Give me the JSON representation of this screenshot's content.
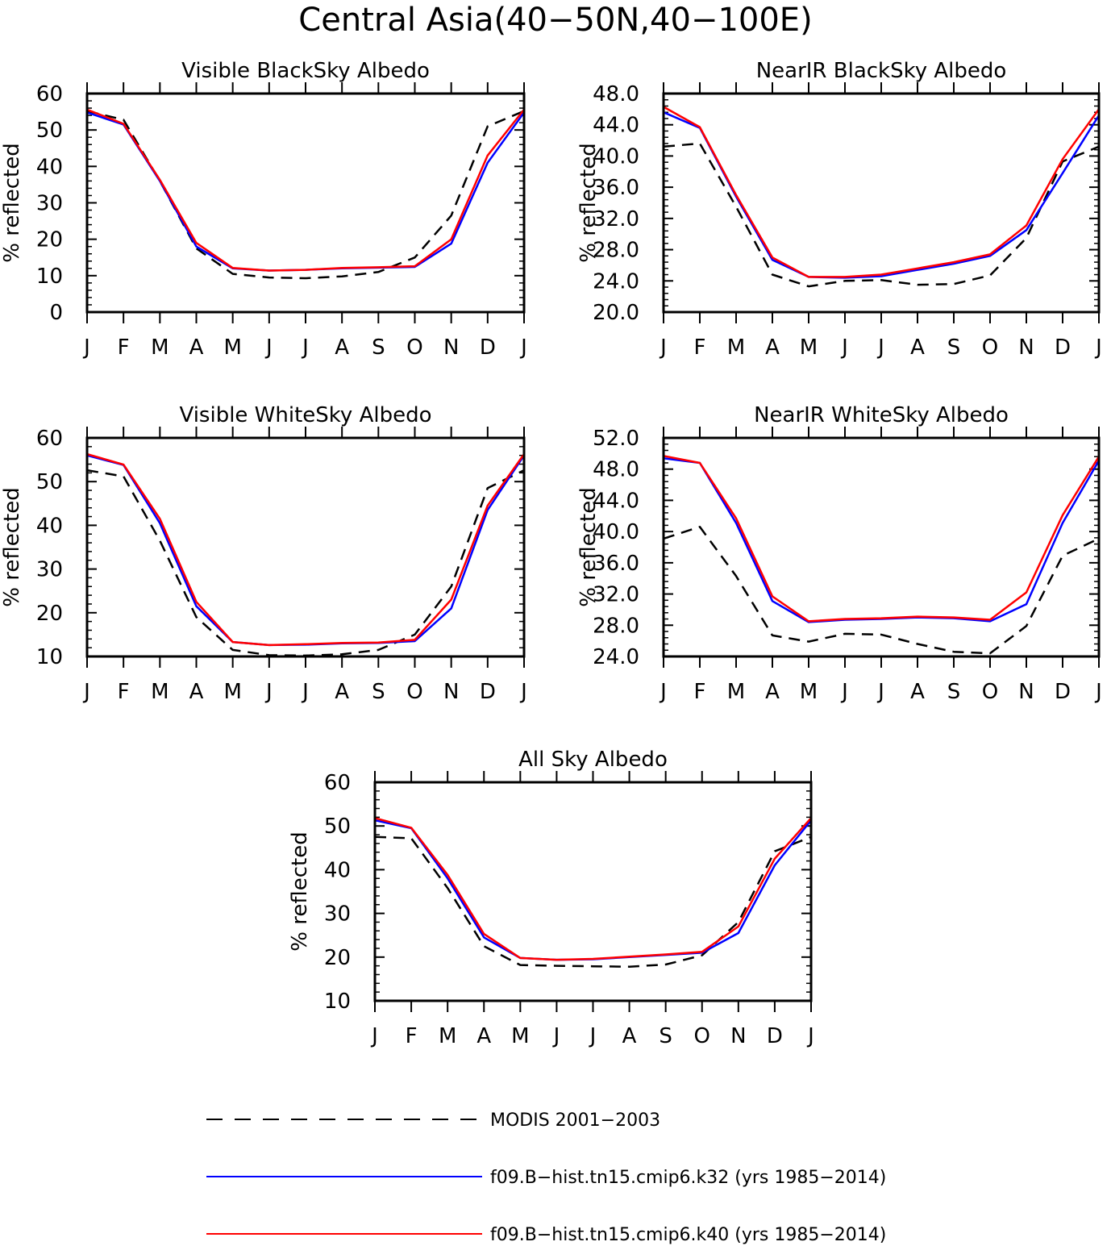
{
  "title": "Central Asia(40−50N,40−100E)",
  "months": [
    "J",
    "F",
    "M",
    "A",
    "M",
    "J",
    "J",
    "A",
    "S",
    "O",
    "N",
    "D",
    "J"
  ],
  "colors": {
    "modis": "#000000",
    "k32": "#0000ff",
    "k40": "#ff0000"
  },
  "legend": [
    {
      "key": "modis",
      "label": "MODIS 2001−2003",
      "style": "dashed"
    },
    {
      "key": "k32",
      "label": "f09.B−hist.tn15.cmip6.k32 (yrs 1985−2014)",
      "style": "solid"
    },
    {
      "key": "k40",
      "label": "f09.B−hist.tn15.cmip6.k40 (yrs 1985−2014)",
      "style": "solid"
    }
  ],
  "chart_data": [
    {
      "type": "line",
      "title": "Visible BlackSky Albedo",
      "ylabel": "% reflected",
      "ylim": [
        0,
        60
      ],
      "yticks": [
        "0",
        "10",
        "20",
        "30",
        "40",
        "50",
        "60"
      ],
      "categories": [
        "J",
        "F",
        "M",
        "A",
        "M",
        "J",
        "J",
        "A",
        "S",
        "O",
        "N",
        "D",
        "J"
      ],
      "series": [
        {
          "name": "MODIS 2001−2003",
          "key": "modis",
          "values": [
            55.2,
            52.8,
            36.0,
            17.5,
            10.5,
            9.5,
            9.3,
            9.8,
            11.0,
            15.0,
            26.5,
            51.0,
            55.2
          ]
        },
        {
          "name": "f09.B−hist.tn15.cmip6.k32 (yrs 1985−2014)",
          "key": "k32",
          "values": [
            54.8,
            51.5,
            36.0,
            18.0,
            12.0,
            11.4,
            11.6,
            12.0,
            12.2,
            12.4,
            18.8,
            41.0,
            54.8
          ]
        },
        {
          "name": "f09.B−hist.tn15.cmip6.k40 (yrs 1985−2014)",
          "key": "k40",
          "values": [
            55.6,
            51.7,
            36.3,
            19.0,
            12.1,
            11.4,
            11.6,
            12.1,
            12.3,
            12.6,
            20.0,
            43.0,
            55.6
          ]
        }
      ]
    },
    {
      "type": "line",
      "title": "NearIR BlackSky Albedo",
      "ylabel": "% reflected",
      "ylim": [
        20,
        48
      ],
      "yticks": [
        "20.0",
        "24.0",
        "28.0",
        "32.0",
        "36.0",
        "40.0",
        "44.0",
        "48.0"
      ],
      "categories": [
        "J",
        "F",
        "M",
        "A",
        "M",
        "J",
        "J",
        "A",
        "S",
        "O",
        "N",
        "D",
        "J"
      ],
      "series": [
        {
          "name": "MODIS 2001−2003",
          "key": "modis",
          "values": [
            41.2,
            41.6,
            33.5,
            24.8,
            23.3,
            24.0,
            24.1,
            23.5,
            23.6,
            24.7,
            29.5,
            39.3,
            41.2
          ]
        },
        {
          "name": "f09.B−hist.tn15.cmip6.k32 (yrs 1985−2014)",
          "key": "k32",
          "values": [
            45.6,
            43.6,
            34.8,
            26.7,
            24.5,
            24.4,
            24.6,
            25.4,
            26.2,
            27.2,
            30.5,
            37.8,
            45.2
          ]
        },
        {
          "name": "f09.B−hist.tn15.cmip6.k40 (yrs 1985−2014)",
          "key": "k40",
          "values": [
            46.3,
            43.7,
            35.0,
            27.0,
            24.5,
            24.5,
            24.8,
            25.6,
            26.4,
            27.4,
            31.1,
            39.6,
            46.0
          ]
        }
      ]
    },
    {
      "type": "line",
      "title": "Visible WhiteSky Albedo",
      "ylabel": "% reflected",
      "ylim": [
        10,
        60
      ],
      "yticks": [
        "10",
        "20",
        "30",
        "40",
        "50",
        "60"
      ],
      "categories": [
        "J",
        "F",
        "M",
        "A",
        "M",
        "J",
        "J",
        "A",
        "S",
        "O",
        "N",
        "D",
        "J"
      ],
      "series": [
        {
          "name": "MODIS 2001−2003",
          "key": "modis",
          "values": [
            52.6,
            51.2,
            36.5,
            19.0,
            11.5,
            10.3,
            10.2,
            10.5,
            11.5,
            15.0,
            26.0,
            48.5,
            52.6
          ]
        },
        {
          "name": "f09.B−hist.tn15.cmip6.k32 (yrs 1985−2014)",
          "key": "k32",
          "values": [
            56.0,
            53.8,
            40.5,
            21.5,
            13.3,
            12.6,
            12.7,
            13.0,
            13.1,
            13.5,
            21.0,
            43.5,
            56.0
          ]
        },
        {
          "name": "f09.B−hist.tn15.cmip6.k40 (yrs 1985−2014)",
          "key": "k40",
          "values": [
            56.3,
            53.9,
            41.5,
            22.5,
            13.3,
            12.6,
            12.8,
            13.1,
            13.2,
            13.8,
            23.0,
            44.5,
            56.3
          ]
        }
      ]
    },
    {
      "type": "line",
      "title": "NearIR WhiteSky Albedo",
      "ylabel": "% reflected",
      "ylim": [
        24,
        52
      ],
      "yticks": [
        "24.0",
        "28.0",
        "32.0",
        "36.0",
        "40.0",
        "44.0",
        "48.0",
        "52.0"
      ],
      "categories": [
        "J",
        "F",
        "M",
        "A",
        "M",
        "J",
        "J",
        "A",
        "S",
        "O",
        "N",
        "D",
        "J"
      ],
      "series": [
        {
          "name": "MODIS 2001−2003",
          "key": "modis",
          "values": [
            39.1,
            40.6,
            34.3,
            26.7,
            25.9,
            26.9,
            26.8,
            25.6,
            24.6,
            24.4,
            27.9,
            36.9,
            39.1
          ]
        },
        {
          "name": "f09.B−hist.tn15.cmip6.k32 (yrs 1985−2014)",
          "key": "k32",
          "values": [
            49.4,
            48.8,
            41.1,
            31.1,
            28.4,
            28.7,
            28.8,
            29.0,
            28.9,
            28.5,
            30.7,
            41.1,
            49.1
          ]
        },
        {
          "name": "f09.B−hist.tn15.cmip6.k40 (yrs 1985−2014)",
          "key": "k40",
          "values": [
            49.7,
            48.8,
            41.7,
            31.7,
            28.5,
            28.8,
            28.9,
            29.1,
            29.0,
            28.7,
            32.2,
            42.1,
            49.6
          ]
        }
      ]
    },
    {
      "type": "line",
      "title": "All Sky Albedo",
      "ylabel": "% reflected",
      "ylim": [
        10,
        60
      ],
      "yticks": [
        "10",
        "20",
        "30",
        "40",
        "50",
        "60"
      ],
      "categories": [
        "J",
        "F",
        "M",
        "A",
        "M",
        "J",
        "J",
        "A",
        "S",
        "O",
        "N",
        "D",
        "J"
      ],
      "series": [
        {
          "name": "MODIS 2001−2003",
          "key": "modis",
          "values": [
            47.5,
            47.2,
            35.8,
            22.5,
            18.2,
            18.0,
            17.9,
            17.8,
            18.3,
            20.4,
            28.0,
            44.2,
            47.5
          ]
        },
        {
          "name": "f09.B−hist.tn15.cmip6.k32 (yrs 1985−2014)",
          "key": "k32",
          "values": [
            51.3,
            49.5,
            38.0,
            24.5,
            19.8,
            19.4,
            19.5,
            20.0,
            20.5,
            21.0,
            25.5,
            41.0,
            51.3
          ]
        },
        {
          "name": "f09.B−hist.tn15.cmip6.k40 (yrs 1985−2014)",
          "key": "k40",
          "values": [
            51.8,
            49.6,
            38.8,
            25.3,
            19.8,
            19.4,
            19.6,
            20.1,
            20.6,
            21.2,
            27.0,
            42.5,
            51.8
          ]
        }
      ]
    }
  ]
}
